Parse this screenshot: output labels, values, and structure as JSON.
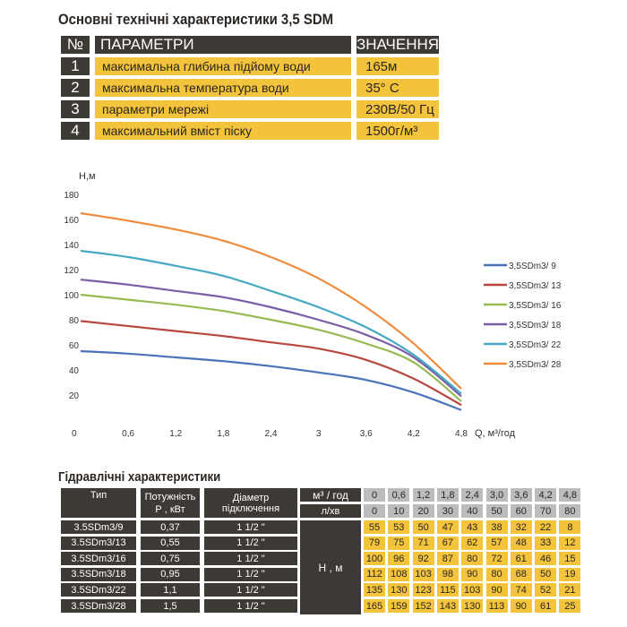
{
  "spec": {
    "title": "Основні технічні характеристики 3,5 SDM",
    "header": {
      "num": "№",
      "param": "ПАРАМЕТРИ",
      "value": "ЗНАЧЕННЯ"
    },
    "rows": [
      {
        "num": "1",
        "param": "максимальна глибина підйому води",
        "value": "165м"
      },
      {
        "num": "2",
        "param": "максимальна температура води",
        "value": "35° С"
      },
      {
        "num": "3",
        "param": "параметри мережі",
        "value": "230В/50 Гц"
      },
      {
        "num": "4",
        "param": "максимальний вміст піску",
        "value": "1500г/м³"
      }
    ]
  },
  "chart_data": {
    "type": "line",
    "ylabel": "Н,м",
    "xlabel": "Q, м³/год",
    "x": [
      0,
      0.6,
      1.2,
      1.8,
      2.4,
      3,
      3.6,
      4.2,
      4.8
    ],
    "x_ticks": [
      "0",
      "0,6",
      "1,2",
      "1,8",
      "2,4",
      "3",
      "3,6",
      "4,2",
      "4,8"
    ],
    "y_ticks": [
      "20",
      "40",
      "60",
      "80",
      "100",
      "120",
      "140",
      "160",
      "180"
    ],
    "ylim": [
      0,
      180
    ],
    "xlim": [
      0,
      4.8
    ],
    "grid": false,
    "legend": "right",
    "series": [
      {
        "name": "3,5SDm3/ 9",
        "color": "#4a72b8",
        "values": [
          55,
          53,
          50,
          47,
          43,
          38,
          32,
          22,
          8
        ]
      },
      {
        "name": "3,5SDm3/ 13",
        "color": "#b8473f",
        "values": [
          79,
          75,
          71,
          67,
          62,
          57,
          48,
          33,
          12
        ]
      },
      {
        "name": "3,5SDm3/ 16",
        "color": "#96bb53",
        "values": [
          100,
          96,
          92,
          87,
          80,
          72,
          61,
          46,
          15
        ]
      },
      {
        "name": "3,5SDm3/ 18",
        "color": "#7b5ea6",
        "values": [
          112,
          108,
          103,
          98,
          90,
          80,
          68,
          50,
          19
        ]
      },
      {
        "name": "3,5SDm3/ 22",
        "color": "#46a9c3",
        "values": [
          135,
          130,
          123,
          115,
          103,
          90,
          74,
          52,
          21
        ]
      },
      {
        "name": "3,5SDm3/ 28",
        "color": "#f08a3c",
        "values": [
          165,
          159,
          152,
          143,
          130,
          113,
          90,
          61,
          25
        ]
      }
    ]
  },
  "hydro": {
    "title": "Гідравлічні характеристики",
    "headers": {
      "type": "Тип",
      "power": "Потужність Р , кВт",
      "diameter": "Діаметр підключення",
      "flow_m3": "м³ / год",
      "flow_l": "л/хв",
      "head": "Н , м"
    },
    "flow_m3": [
      "0",
      "0,6",
      "1,2",
      "1,8",
      "2,4",
      "3,0",
      "3,6",
      "4,2",
      "4,8"
    ],
    "flow_l": [
      "0",
      "10",
      "20",
      "30",
      "40",
      "50",
      "60",
      "70",
      "80"
    ],
    "rows": [
      {
        "type": "3.5SDm3/9",
        "power": "0,37",
        "diameter": "1 1/2 \"",
        "h": [
          "55",
          "53",
          "50",
          "47",
          "43",
          "38",
          "32",
          "22",
          "8"
        ]
      },
      {
        "type": "3.5SDm3/13",
        "power": "0,55",
        "diameter": "1 1/2 \"",
        "h": [
          "79",
          "75",
          "71",
          "67",
          "62",
          "57",
          "48",
          "33",
          "12"
        ]
      },
      {
        "type": "3.5SDm3/16",
        "power": "0,75",
        "diameter": "1 1/2 \"",
        "h": [
          "100",
          "96",
          "92",
          "87",
          "80",
          "72",
          "61",
          "46",
          "15"
        ]
      },
      {
        "type": "3.5SDm3/18",
        "power": "0,95",
        "diameter": "1 1/2 \"",
        "h": [
          "112",
          "108",
          "103",
          "98",
          "90",
          "80",
          "68",
          "50",
          "19"
        ]
      },
      {
        "type": "3.5SDm3/22",
        "power": "1,1",
        "diameter": "1 1/2 \"",
        "h": [
          "135",
          "130",
          "123",
          "115",
          "103",
          "90",
          "74",
          "52",
          "21"
        ]
      },
      {
        "type": "3.5SDm3/28",
        "power": "1,5",
        "diameter": "1 1/2 \"",
        "h": [
          "165",
          "159",
          "152",
          "143",
          "130",
          "113",
          "90",
          "61",
          "25"
        ]
      }
    ]
  }
}
